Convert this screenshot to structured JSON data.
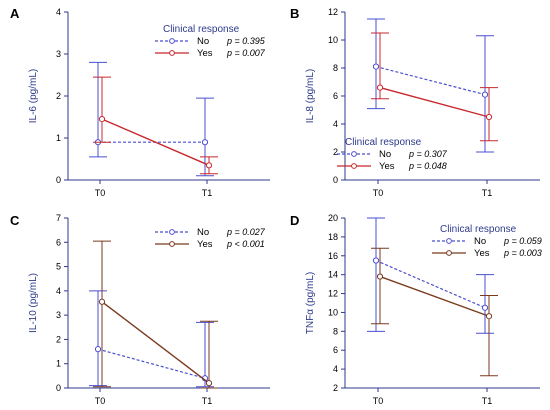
{
  "figure_colors": {
    "no": "#4a4fd0",
    "yes_ab": "#c8282e",
    "yes_cd": "#7a3a1e",
    "axis": "#2d3a8c",
    "marker_fill": "#ffffff"
  },
  "chart_data": [
    {
      "type": "line",
      "panel": "A",
      "ylabel": "IL-6 (pg/mL)",
      "categories": [
        "T0",
        "T1"
      ],
      "ylim": [
        0,
        4
      ],
      "yticks": [
        0,
        1,
        2,
        3,
        4
      ],
      "legend": {
        "title": "Clinical response",
        "placement": "top-center"
      },
      "series": [
        {
          "name": "No",
          "values": [
            0.9,
            0.9
          ],
          "err_low": [
            0.55,
            0.1
          ],
          "err_high": [
            2.8,
            1.95
          ],
          "p": "p = 0.395",
          "color": "#4a4fd0",
          "dashed": true
        },
        {
          "name": "Yes",
          "values": [
            1.45,
            0.35
          ],
          "err_low": [
            0.9,
            0.15
          ],
          "err_high": [
            2.45,
            0.55
          ],
          "p": "p = 0.007",
          "color": "#c8282e",
          "dashed": false
        }
      ]
    },
    {
      "type": "line",
      "panel": "B",
      "ylabel": "IL-8 (pg/mL)",
      "categories": [
        "T0",
        "T1"
      ],
      "ylim": [
        0,
        12
      ],
      "yticks": [
        0,
        2,
        4,
        6,
        8,
        10,
        12
      ],
      "legend": {
        "title": "Clinical response",
        "placement": "bottom-left"
      },
      "series": [
        {
          "name": "No",
          "values": [
            8.1,
            6.1
          ],
          "err_low": [
            5.1,
            2.0
          ],
          "err_high": [
            11.5,
            10.3
          ],
          "p": "p = 0.307",
          "color": "#4a4fd0",
          "dashed": true
        },
        {
          "name": "Yes",
          "values": [
            6.6,
            4.5
          ],
          "err_low": [
            5.8,
            2.8
          ],
          "err_high": [
            10.5,
            6.6
          ],
          "p": "p = 0.048",
          "color": "#c8282e",
          "dashed": false
        }
      ]
    },
    {
      "type": "line",
      "panel": "C",
      "ylabel": "IL-10 (pg/mL)",
      "categories": [
        "T0",
        "T1"
      ],
      "ylim": [
        0,
        7
      ],
      "yticks": [
        0,
        1,
        2,
        3,
        4,
        5,
        6,
        7
      ],
      "legend": {
        "title": "",
        "placement": "top-center"
      },
      "series": [
        {
          "name": "No",
          "values": [
            1.6,
            0.4
          ],
          "err_low": [
            0.1,
            0.05
          ],
          "err_high": [
            4.0,
            2.7
          ],
          "p": "p = 0.027",
          "color": "#4a4fd0",
          "dashed": true
        },
        {
          "name": "Yes",
          "values": [
            3.55,
            0.2
          ],
          "err_low": [
            0.05,
            0.0
          ],
          "err_high": [
            6.05,
            2.75
          ],
          "p": "p < 0.001",
          "color": "#7a3a1e",
          "dashed": false
        }
      ]
    },
    {
      "type": "line",
      "panel": "D",
      "ylabel": "TNFα (pg/mL)",
      "categories": [
        "T0",
        "T1"
      ],
      "ylim": [
        2,
        20
      ],
      "yticks": [
        2,
        4,
        6,
        8,
        10,
        12,
        14,
        16,
        18,
        20
      ],
      "legend": {
        "title": "Clinical response",
        "placement": "top-right"
      },
      "series": [
        {
          "name": "No",
          "values": [
            15.5,
            10.5
          ],
          "err_low": [
            8.0,
            7.8
          ],
          "err_high": [
            20.0,
            14.0
          ],
          "p": "p = 0.059",
          "color": "#4a4fd0",
          "dashed": true
        },
        {
          "name": "Yes",
          "values": [
            13.8,
            9.6
          ],
          "err_low": [
            8.8,
            3.3
          ],
          "err_high": [
            16.8,
            11.8
          ],
          "p": "p = 0.003",
          "color": "#7a3a1e",
          "dashed": false
        }
      ]
    }
  ]
}
